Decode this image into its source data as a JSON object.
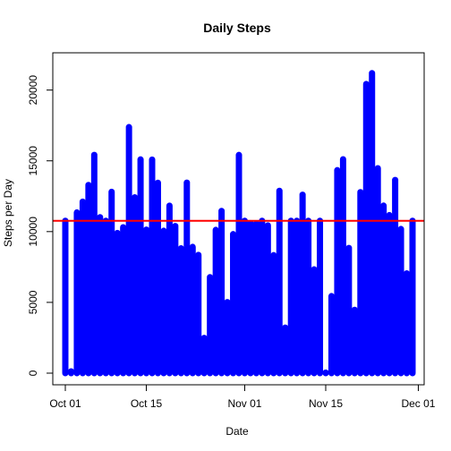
{
  "chart_data": {
    "type": "bar",
    "title": "Daily Steps",
    "xlabel": "Date",
    "ylabel": "Steps per Day",
    "x_tick_labels": [
      {
        "label": "Oct 01",
        "date": "2012-10-01"
      },
      {
        "label": "Oct 15",
        "date": "2012-10-15"
      },
      {
        "label": "Nov 01",
        "date": "2012-11-01"
      },
      {
        "label": "Nov 15",
        "date": "2012-11-15"
      },
      {
        "label": "Dec 01",
        "date": "2012-12-01"
      }
    ],
    "y_ticks": [
      0,
      5000,
      10000,
      15000,
      20000
    ],
    "xlim": [
      "2012-10-01",
      "2012-11-30"
    ],
    "ylim": [
      0,
      22000
    ],
    "bar_color": "#0000ff",
    "reference_line": {
      "value": 10766,
      "color": "#ff0000"
    },
    "grid": false,
    "legend": "none",
    "series": [
      {
        "dates": [
          "2012-10-01",
          "2012-10-02",
          "2012-10-03",
          "2012-10-04",
          "2012-10-05",
          "2012-10-06",
          "2012-10-07",
          "2012-10-08",
          "2012-10-09",
          "2012-10-10",
          "2012-10-11",
          "2012-10-12",
          "2012-10-13",
          "2012-10-14",
          "2012-10-15",
          "2012-10-16",
          "2012-10-17",
          "2012-10-18",
          "2012-10-19",
          "2012-10-20",
          "2012-10-21",
          "2012-10-22",
          "2012-10-23",
          "2012-10-24",
          "2012-10-25",
          "2012-10-26",
          "2012-10-27",
          "2012-10-28",
          "2012-10-29",
          "2012-10-30",
          "2012-10-31",
          "2012-11-01",
          "2012-11-02",
          "2012-11-03",
          "2012-11-04",
          "2012-11-05",
          "2012-11-06",
          "2012-11-07",
          "2012-11-08",
          "2012-11-09",
          "2012-11-10",
          "2012-11-11",
          "2012-11-12",
          "2012-11-13",
          "2012-11-14",
          "2012-11-15",
          "2012-11-16",
          "2012-11-17",
          "2012-11-18",
          "2012-11-19",
          "2012-11-20",
          "2012-11-21",
          "2012-11-22",
          "2012-11-23",
          "2012-11-24",
          "2012-11-25",
          "2012-11-26",
          "2012-11-27",
          "2012-11-28",
          "2012-11-29",
          "2012-11-30"
        ],
        "values": [
          10766,
          126,
          11352,
          12116,
          13294,
          15420,
          11015,
          10766,
          12811,
          9900,
          10304,
          17382,
          12426,
          15098,
          10139,
          15084,
          13452,
          10056,
          11829,
          10395,
          8821,
          13460,
          8918,
          8355,
          2492,
          6778,
          10119,
          11458,
          5018,
          9819,
          15414,
          10766,
          10600,
          10571,
          10766,
          10439,
          8334,
          12883,
          3219,
          10766,
          10766,
          12608,
          10765,
          7336,
          10766,
          41,
          5441,
          14339,
          15110,
          8841,
          4472,
          12787,
          20427,
          21194,
          14478,
          11834,
          11162,
          13646,
          10183,
          7047,
          10766
        ]
      }
    ]
  }
}
